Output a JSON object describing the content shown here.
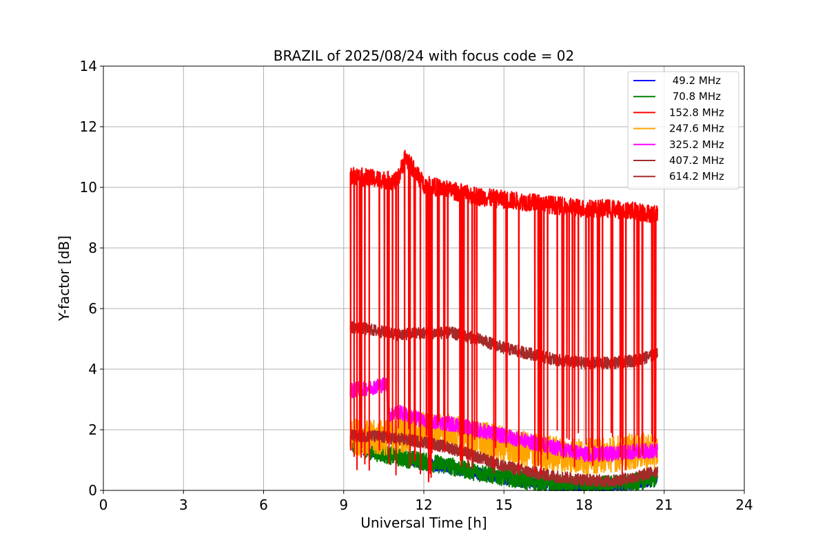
{
  "chart_data": {
    "type": "line",
    "title": "BRAZIL of 2025/08/24 with focus code = 02",
    "xlabel": "Universal Time [h]",
    "ylabel": "Y-factor [dB]",
    "xlim": [
      0,
      24
    ],
    "ylim": [
      0,
      14
    ],
    "xticks": [
      0,
      3,
      6,
      9,
      12,
      15,
      18,
      21,
      24
    ],
    "yticks": [
      0,
      2,
      4,
      6,
      8,
      10,
      12,
      14
    ],
    "grid": true,
    "legend_position": "top-right",
    "series": [
      {
        "name": " 49.2 MHz",
        "color": "#0000ff",
        "x": [
          9.25,
          10.0,
          11.0,
          12.0,
          13.0,
          14.0,
          15.0,
          16.0,
          17.0,
          18.0,
          19.0,
          20.0,
          20.75
        ],
        "y": [
          1.5,
          1.3,
          1.1,
          0.9,
          0.75,
          0.55,
          0.4,
          0.25,
          0.15,
          0.1,
          0.15,
          0.25,
          0.35
        ],
        "noise": 0.2
      },
      {
        "name": " 70.8 MHz",
        "color": "#008000",
        "x": [
          9.25,
          10.0,
          11.0,
          12.0,
          13.0,
          14.0,
          15.0,
          16.0,
          17.0,
          18.0,
          19.0,
          20.0,
          20.75
        ],
        "y": [
          1.6,
          1.3,
          1.1,
          0.95,
          0.8,
          0.6,
          0.45,
          0.3,
          0.2,
          0.15,
          0.2,
          0.3,
          0.4
        ],
        "noise": 0.3
      },
      {
        "name": "152.8 MHz",
        "color": "#ff0000",
        "x": [
          9.25,
          10.0,
          11.0,
          11.3,
          12.0,
          13.0,
          14.0,
          15.0,
          16.0,
          17.0,
          18.0,
          19.0,
          20.0,
          20.75
        ],
        "y": [
          10.4,
          10.3,
          10.2,
          11.0,
          10.1,
          9.9,
          9.7,
          9.6,
          9.5,
          9.4,
          9.3,
          9.3,
          9.2,
          9.1
        ],
        "noise": 0.3,
        "dropouts": true
      },
      {
        "name": "247.6 MHz",
        "color": "#ffa500",
        "x": [
          9.25,
          10.0,
          11.0,
          12.0,
          13.0,
          14.0,
          15.0,
          16.0,
          17.0,
          18.0,
          19.0,
          20.0,
          20.75
        ],
        "y": [
          1.8,
          1.7,
          1.8,
          2.0,
          1.9,
          1.7,
          1.5,
          1.3,
          1.2,
          1.1,
          1.2,
          1.3,
          1.3
        ],
        "noise": 0.6
      },
      {
        "name": "325.2 MHz",
        "color": "#ff00ff",
        "x": [
          9.25,
          10.0,
          10.6,
          10.7,
          11.0,
          12.0,
          13.0,
          14.0,
          15.0,
          16.0,
          17.0,
          18.0,
          19.0,
          20.0,
          20.75
        ],
        "y": [
          3.3,
          3.4,
          3.5,
          2.5,
          2.6,
          2.3,
          2.2,
          2.0,
          1.8,
          1.6,
          1.4,
          1.2,
          1.2,
          1.3,
          1.3
        ],
        "noise": 0.25
      },
      {
        "name": "407.2 MHz",
        "color": "#a52a2a",
        "x": [
          9.25,
          10.0,
          11.0,
          12.0,
          13.0,
          14.0,
          15.0,
          16.0,
          17.0,
          18.0,
          19.0,
          20.0,
          20.75
        ],
        "y": [
          1.8,
          1.8,
          1.7,
          1.6,
          1.4,
          1.1,
          0.8,
          0.6,
          0.45,
          0.35,
          0.3,
          0.45,
          0.65
        ],
        "noise": 0.2
      },
      {
        "name": "614.2 MHz",
        "color": "#a52a2a",
        "x": [
          9.25,
          10.0,
          11.0,
          12.0,
          13.0,
          14.0,
          15.0,
          16.0,
          17.0,
          18.0,
          19.0,
          20.0,
          20.75
        ],
        "y": [
          5.4,
          5.3,
          5.15,
          5.2,
          5.2,
          5.0,
          4.7,
          4.5,
          4.3,
          4.2,
          4.2,
          4.3,
          4.5
        ],
        "noise": 0.2
      }
    ]
  }
}
